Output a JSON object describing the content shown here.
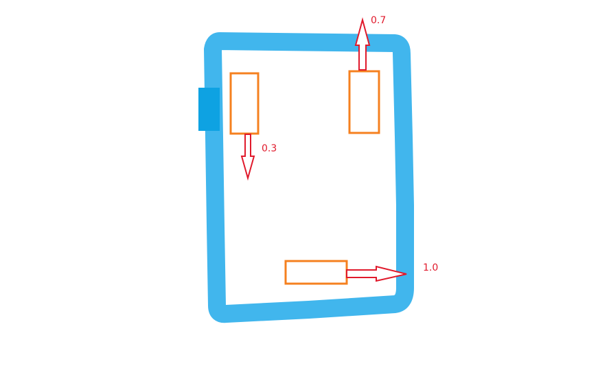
{
  "colors": {
    "frame": "#41b6ed",
    "frame_tab": "#0ea2e2",
    "block_outline": "#f5801f",
    "arrow": "#e0192b",
    "arrow_fill": "#ffffff",
    "label": "#e0192b"
  },
  "labels": {
    "left_block_value": "0.3",
    "right_block_value": "0.7",
    "bottom_block_value": "1.0"
  }
}
